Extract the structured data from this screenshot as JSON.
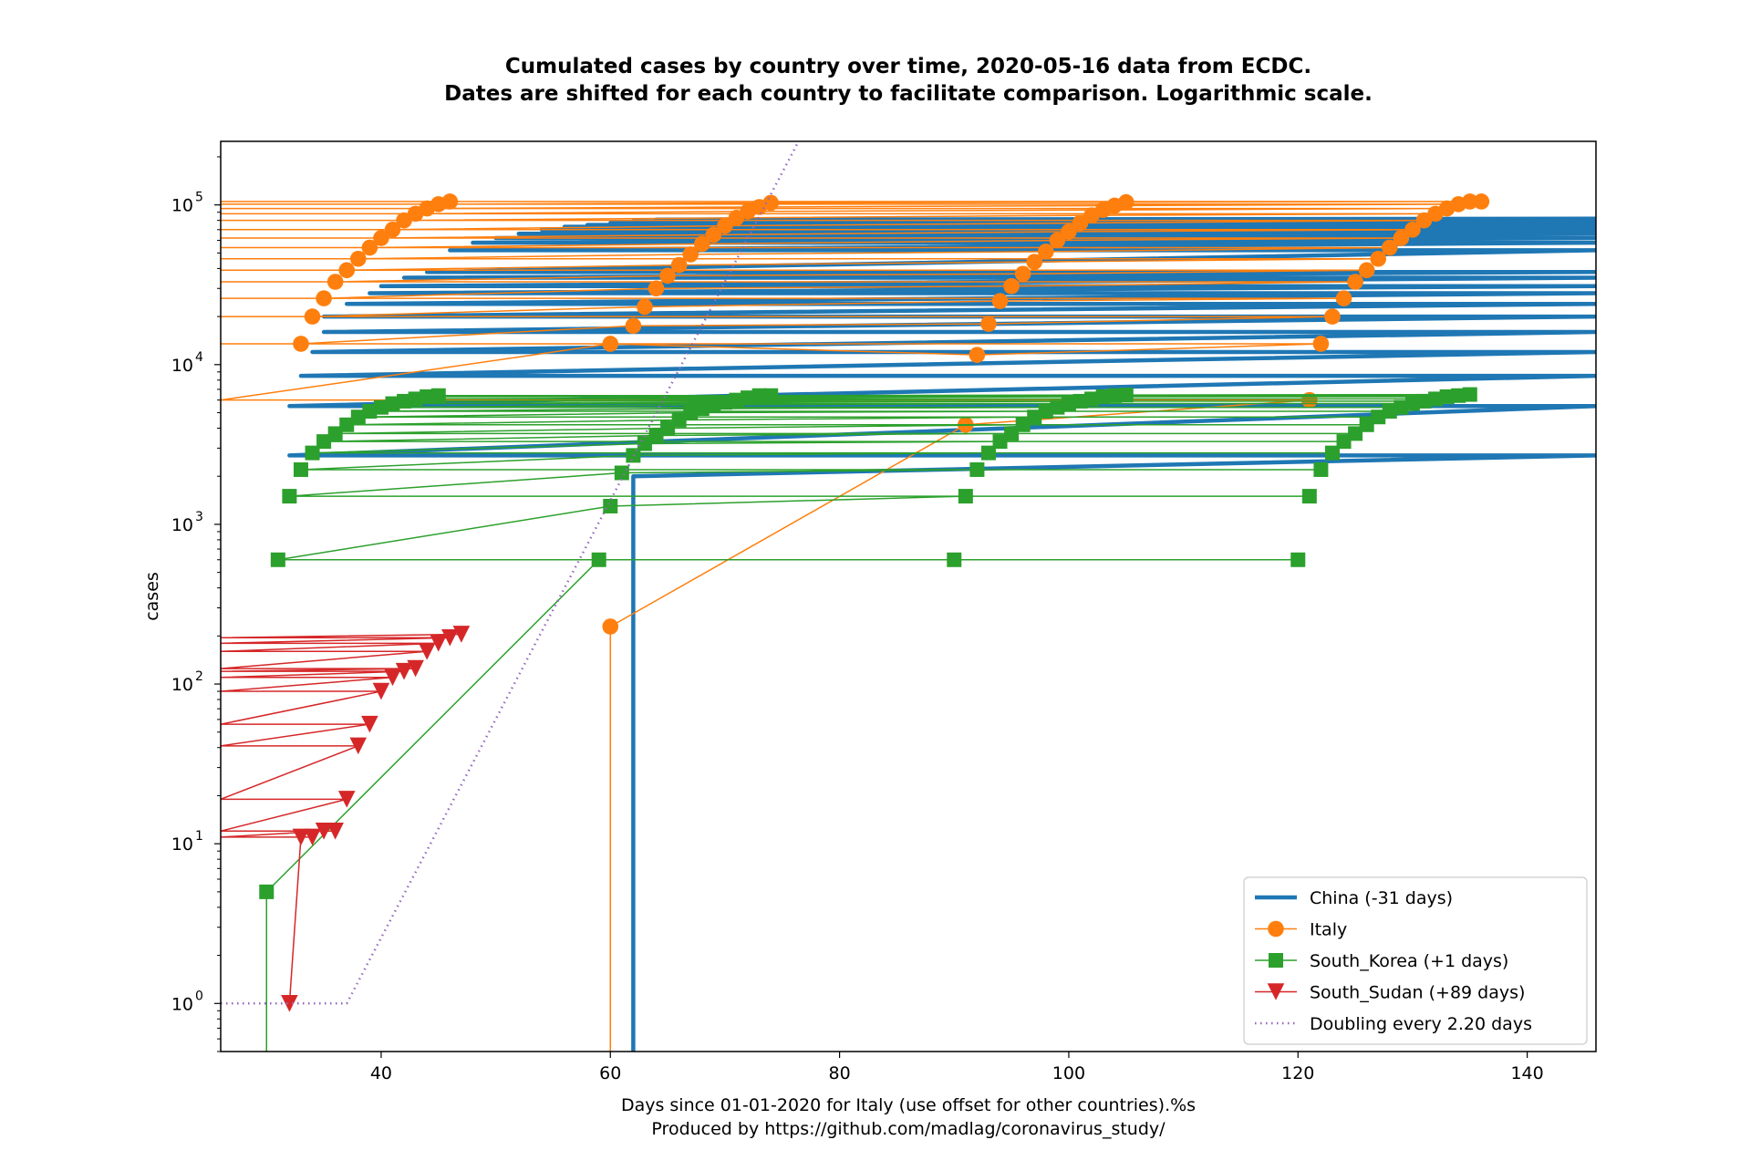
{
  "chart_data": {
    "type": "line",
    "title": "Cumulated cases by country over time, 2020-05-16 data from ECDC.",
    "subtitle": "Dates are shifted for each country to facilitate comparison. Logarithmic scale.",
    "xlabel": "Days since 01-01-2020 for Italy (use offset for other countries).%s",
    "xlabel_line2": "Produced by https://github.com/madlag/coronavirus_study/",
    "ylabel": "cases",
    "xlim": [
      26,
      146
    ],
    "ylim": [
      0.5,
      250000
    ],
    "yscale": "log",
    "grid": false,
    "legend_position": "lower-right",
    "x_ticks": [
      40,
      60,
      80,
      100,
      120,
      140
    ],
    "y_ticks": [
      {
        "value": 1,
        "base": "10",
        "exp": "0"
      },
      {
        "value": 10,
        "base": "10",
        "exp": "1"
      },
      {
        "value": 100,
        "base": "10",
        "exp": "2"
      },
      {
        "value": 1000,
        "base": "10",
        "exp": "3"
      },
      {
        "value": 10000,
        "base": "10",
        "exp": "4"
      },
      {
        "value": 100000,
        "base": "10",
        "exp": "5"
      }
    ],
    "series": [
      {
        "name": "China (-31 days)",
        "color": "#1f77b4",
        "marker": "none",
        "linewidth": 4.5,
        "x": [
          62,
          62,
          62,
          146,
          32,
          146,
          32,
          146,
          33,
          146,
          34,
          146,
          35,
          146,
          35,
          146,
          37,
          146,
          39,
          146,
          40,
          146,
          42,
          146,
          44,
          146,
          46,
          146,
          48,
          146,
          50,
          146,
          52,
          146,
          54,
          146,
          56,
          146,
          58,
          146,
          60,
          146,
          62,
          146,
          64,
          146
        ],
        "y": [
          0.5,
          2000,
          2000,
          2700,
          2700,
          5500,
          5500,
          8500,
          8500,
          12000,
          12000,
          16000,
          16000,
          20000,
          20000,
          24000,
          24000,
          28000,
          28000,
          31000,
          31000,
          35000,
          35000,
          38000,
          38000,
          52000,
          52000,
          58000,
          58000,
          62000,
          62000,
          66000,
          66000,
          70000,
          70000,
          73000,
          73000,
          75000,
          75000,
          77000,
          77000,
          79000,
          79000,
          81000,
          81000,
          82000
        ]
      },
      {
        "name": "Italy",
        "color": "#ff7f0e",
        "marker": "circle",
        "linewidth": 1.5,
        "x": [
          60,
          60,
          91,
          121,
          26,
          60,
          92,
          122,
          26,
          33,
          62,
          93,
          123,
          26,
          34,
          63,
          94,
          124,
          26,
          35,
          64,
          95,
          125,
          26,
          36,
          65,
          96,
          126,
          26,
          37,
          66,
          97,
          127,
          26,
          38,
          67,
          98,
          128,
          26,
          39,
          68,
          99,
          129,
          26,
          40,
          69,
          100,
          130,
          26,
          41,
          70,
          101,
          131,
          26,
          42,
          71,
          102,
          132,
          26,
          43,
          72,
          103,
          133,
          26,
          44,
          73,
          104,
          134,
          26,
          45,
          74,
          105,
          135,
          26,
          46,
          136
        ],
        "y": [
          0.5,
          229,
          4200,
          6000,
          6000,
          13500,
          11500,
          13500,
          13500,
          13500,
          17500,
          18000,
          20000,
          20000,
          20000,
          23000,
          25000,
          26000,
          26000,
          26000,
          30000,
          31000,
          33000,
          33000,
          33000,
          36000,
          37000,
          39000,
          39000,
          39000,
          42000,
          44000,
          46000,
          46000,
          46000,
          49000,
          51000,
          54000,
          54000,
          54000,
          57000,
          60000,
          62000,
          62000,
          62000,
          65000,
          68000,
          70000,
          70000,
          70000,
          74000,
          77000,
          80000,
          80000,
          80000,
          83000,
          86000,
          88000,
          88000,
          88000,
          91000,
          93000,
          95000,
          95000,
          95000,
          97000,
          99000,
          101000,
          101000,
          101000,
          103000,
          104000,
          105000,
          105000,
          105000,
          105000
        ]
      },
      {
        "name": "South_Korea (+1 days)",
        "color": "#2ca02c",
        "marker": "square",
        "linewidth": 1.5,
        "x": [
          30,
          30,
          59,
          90,
          120,
          31,
          60,
          91,
          121,
          32,
          61,
          92,
          122,
          33,
          62,
          93,
          123,
          34,
          63,
          94,
          124,
          35,
          64,
          95,
          125,
          36,
          65,
          96,
          126,
          37,
          66,
          97,
          127,
          38,
          67,
          98,
          128,
          39,
          68,
          99,
          129,
          40,
          69,
          100,
          130,
          41,
          70,
          101,
          131,
          42,
          71,
          102,
          132,
          43,
          72,
          103,
          133,
          44,
          73,
          104,
          134,
          45,
          74,
          105,
          135
        ],
        "y": [
          0.5,
          5,
          600,
          600,
          600,
          600,
          1300,
          1500,
          1500,
          1500,
          2100,
          2200,
          2200,
          2200,
          2700,
          2800,
          2800,
          2800,
          3200,
          3300,
          3300,
          3300,
          3600,
          3700,
          3700,
          3700,
          4000,
          4200,
          4200,
          4200,
          4500,
          4700,
          4700,
          4700,
          5000,
          5100,
          5100,
          5100,
          5300,
          5400,
          5400,
          5400,
          5600,
          5700,
          5700,
          5700,
          5800,
          5900,
          5900,
          5900,
          6000,
          6100,
          6100,
          6100,
          6200,
          6300,
          6300,
          6300,
          6400,
          6400,
          6400,
          6400,
          6400,
          6450,
          6500
        ]
      },
      {
        "name": "South_Sudan (+89 days)",
        "color": "#d62728",
        "marker": "triangle-down",
        "linewidth": 1.5,
        "x": [
          32,
          33,
          34,
          26,
          35,
          36,
          26,
          37,
          26,
          38,
          26,
          39,
          26,
          40,
          26,
          41,
          26,
          42,
          26,
          43,
          26,
          44,
          26,
          45,
          26,
          46,
          26,
          47
        ],
        "y": [
          1,
          11,
          11,
          11,
          12,
          12,
          12,
          19,
          19,
          41,
          41,
          56,
          56,
          90,
          90,
          110,
          110,
          120,
          120,
          125,
          125,
          160,
          160,
          180,
          180,
          195,
          195,
          205
        ]
      },
      {
        "name": "Doubling every 2.20 days",
        "color": "#9467bd",
        "marker": "none",
        "linestyle": "dotted",
        "linewidth": 2.5,
        "x": [
          26,
          37,
          77
        ],
        "y": [
          1,
          1,
          300000
        ]
      }
    ]
  }
}
